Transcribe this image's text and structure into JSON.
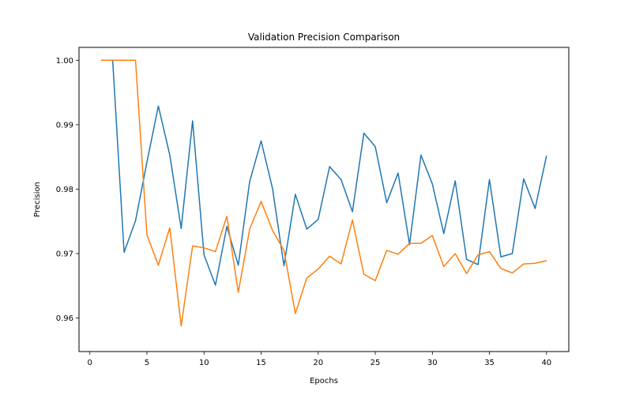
{
  "chart_data": {
    "type": "line",
    "title": "Validation Precision Comparison",
    "xlabel": "Epochs",
    "ylabel": "Precision",
    "xlim": [
      -0.95,
      41.95
    ],
    "ylim": [
      0.9548,
      1.002
    ],
    "xticks": [
      0,
      5,
      10,
      15,
      20,
      25,
      30,
      35,
      40
    ],
    "xtick_labels": [
      "0",
      "5",
      "10",
      "15",
      "20",
      "25",
      "30",
      "35",
      "40"
    ],
    "yticks": [
      0.96,
      0.97,
      0.98,
      0.99,
      1.0
    ],
    "ytick_labels": [
      "0.96",
      "0.97",
      "0.98",
      "0.99",
      "1.00"
    ],
    "grid": false,
    "legend": "none",
    "x": [
      1,
      2,
      3,
      4,
      5,
      6,
      7,
      8,
      9,
      10,
      11,
      12,
      13,
      14,
      15,
      16,
      17,
      18,
      19,
      20,
      21,
      22,
      23,
      24,
      25,
      26,
      27,
      28,
      29,
      30,
      31,
      32,
      33,
      34,
      35,
      36,
      37,
      38,
      39,
      40
    ],
    "series": [
      {
        "color": "#1f77b4",
        "values": [
          1.0,
          1.0,
          0.9702,
          0.9751,
          0.9842,
          0.9929,
          0.9853,
          0.9739,
          0.9906,
          0.9698,
          0.9651,
          0.9742,
          0.9682,
          0.9812,
          0.9875,
          0.9801,
          0.9681,
          0.9792,
          0.9738,
          0.9753,
          0.9835,
          0.9815,
          0.9765,
          0.9887,
          0.9866,
          0.9779,
          0.9825,
          0.9714,
          0.9853,
          0.9808,
          0.9731,
          0.9813,
          0.9691,
          0.9683,
          0.9815,
          0.9695,
          0.97,
          0.9816,
          0.977,
          0.9852
        ]
      },
      {
        "color": "#ff7f0e",
        "values": [
          1.0,
          1.0,
          1.0,
          1.0,
          0.9729,
          0.9682,
          0.974,
          0.9588,
          0.9712,
          0.9709,
          0.9703,
          0.9758,
          0.964,
          0.9738,
          0.9781,
          0.9736,
          0.9705,
          0.9607,
          0.9662,
          0.9676,
          0.9696,
          0.9684,
          0.9752,
          0.9668,
          0.9658,
          0.9705,
          0.9699,
          0.9716,
          0.9716,
          0.9728,
          0.968,
          0.97,
          0.9669,
          0.9698,
          0.9703,
          0.9677,
          0.967,
          0.9684,
          0.9685,
          0.9689
        ]
      }
    ]
  }
}
